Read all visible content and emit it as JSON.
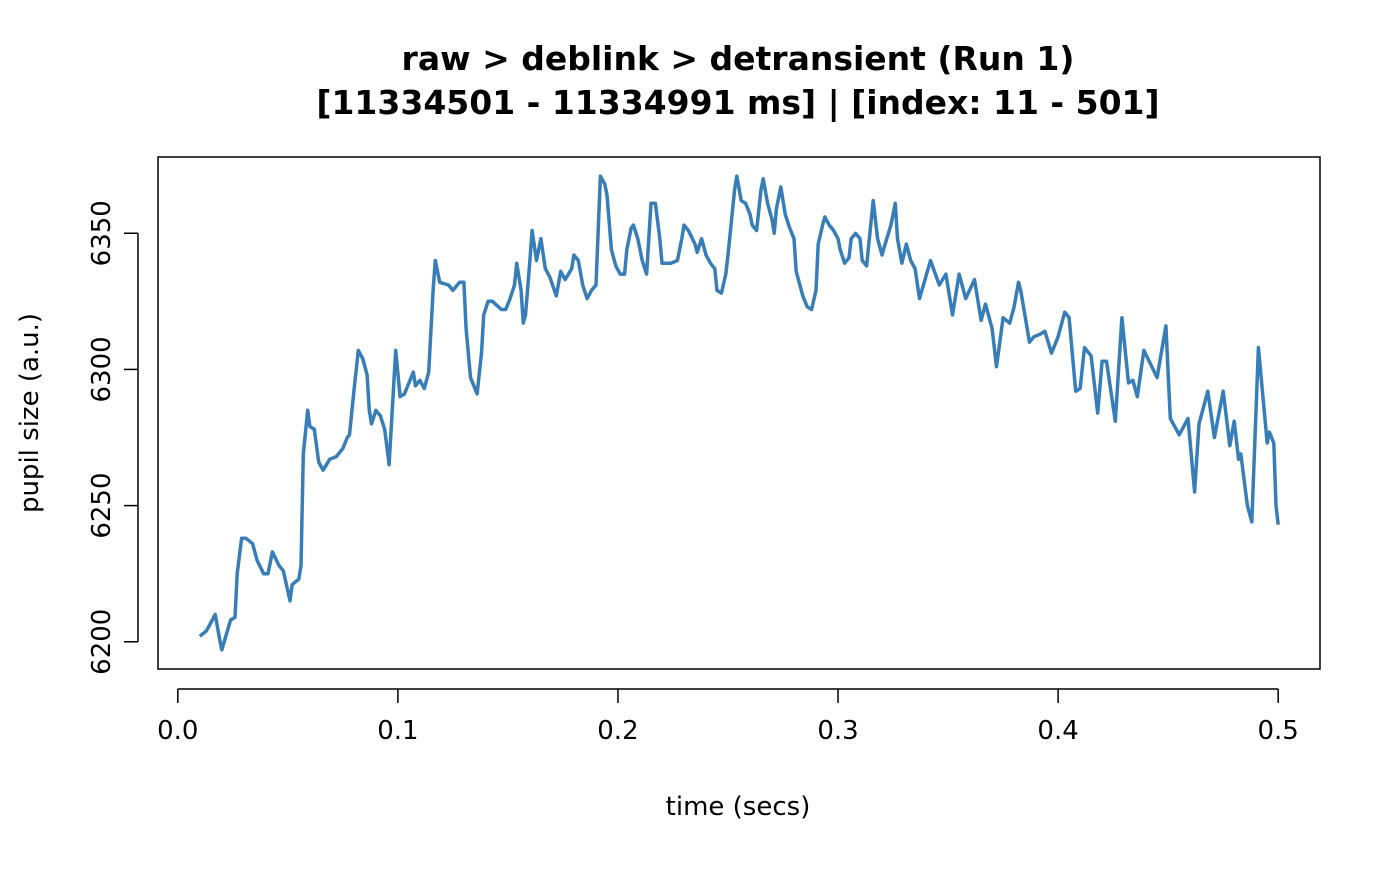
{
  "chart_data": {
    "type": "line",
    "title": "raw > deblink > detransient (Run 1)",
    "subtitle": "[11334501 - 11334991 ms] | [index: 11 - 501]",
    "xlabel": "time (secs)",
    "ylabel": "pupil size (a.u.)",
    "xlim": [
      -0.009,
      0.519
    ],
    "ylim": [
      6190,
      6378
    ],
    "xticks": [
      0.0,
      0.1,
      0.2,
      0.3,
      0.4,
      0.5
    ],
    "xtick_labels": [
      "0.0",
      "0.1",
      "0.2",
      "0.3",
      "0.4",
      "0.5"
    ],
    "yticks": [
      6200,
      6250,
      6300,
      6350
    ],
    "ytick_labels": [
      "6200",
      "6250",
      "6300",
      "6350"
    ],
    "grid": false,
    "line_color": "#377eb8",
    "x": [
      0.01,
      0.013,
      0.017,
      0.019,
      0.02,
      0.024,
      0.026,
      0.027,
      0.029,
      0.031,
      0.034,
      0.036,
      0.039,
      0.041,
      0.043,
      0.046,
      0.048,
      0.051,
      0.052,
      0.055,
      0.056,
      0.057,
      0.059,
      0.06,
      0.062,
      0.064,
      0.066,
      0.069,
      0.072,
      0.075,
      0.077,
      0.078,
      0.08,
      0.082,
      0.084,
      0.086,
      0.087,
      0.088,
      0.09,
      0.092,
      0.094,
      0.096,
      0.098,
      0.099,
      0.101,
      0.103,
      0.107,
      0.108,
      0.11,
      0.112,
      0.114,
      0.116,
      0.117,
      0.119,
      0.123,
      0.125,
      0.128,
      0.13,
      0.131,
      0.133,
      0.136,
      0.138,
      0.139,
      0.141,
      0.143,
      0.147,
      0.149,
      0.151,
      0.153,
      0.154,
      0.156,
      0.157,
      0.158,
      0.16,
      0.161,
      0.163,
      0.165,
      0.167,
      0.169,
      0.172,
      0.174,
      0.176,
      0.179,
      0.18,
      0.182,
      0.184,
      0.186,
      0.188,
      0.19,
      0.192,
      0.194,
      0.195,
      0.197,
      0.199,
      0.201,
      0.203,
      0.204,
      0.206,
      0.207,
      0.209,
      0.211,
      0.213,
      0.215,
      0.217,
      0.219,
      0.22,
      0.224,
      0.227,
      0.229,
      0.23,
      0.232,
      0.235,
      0.236,
      0.238,
      0.24,
      0.242,
      0.244,
      0.245,
      0.247,
      0.249,
      0.25,
      0.253,
      0.254,
      0.256,
      0.258,
      0.26,
      0.261,
      0.263,
      0.265,
      0.266,
      0.268,
      0.27,
      0.271,
      0.272,
      0.274,
      0.276,
      0.278,
      0.28,
      0.281,
      0.282,
      0.284,
      0.286,
      0.288,
      0.29,
      0.291,
      0.293,
      0.294,
      0.296,
      0.298,
      0.3,
      0.301,
      0.303,
      0.305,
      0.306,
      0.308,
      0.31,
      0.311,
      0.313,
      0.316,
      0.318,
      0.32,
      0.321,
      0.324,
      0.326,
      0.327,
      0.329,
      0.331,
      0.333,
      0.335,
      0.337,
      0.342,
      0.346,
      0.349,
      0.352,
      0.355,
      0.358,
      0.362,
      0.365,
      0.367,
      0.37,
      0.372,
      0.375,
      0.378,
      0.38,
      0.382,
      0.383,
      0.387,
      0.389,
      0.392,
      0.394,
      0.397,
      0.4,
      0.403,
      0.405,
      0.408,
      0.41,
      0.412,
      0.415,
      0.418,
      0.42,
      0.422,
      0.426,
      0.429,
      0.432,
      0.434,
      0.436,
      0.439,
      0.442,
      0.445,
      0.449,
      0.451,
      0.455,
      0.459,
      0.462,
      0.464,
      0.468,
      0.471,
      0.475,
      0.478,
      0.48,
      0.482,
      0.483,
      0.486,
      0.488,
      0.491,
      0.495,
      0.496,
      0.498,
      0.499,
      0.5
    ],
    "y": [
      6202,
      6204,
      6210,
      6201,
      6197,
      6208,
      6209,
      6225,
      6238,
      6238,
      6236,
      6230,
      6225,
      6225,
      6233,
      6228,
      6226,
      6215,
      6221,
      6223,
      6228,
      6269,
      6285,
      6279,
      6278,
      6266,
      6263,
      6267,
      6268,
      6271,
      6275,
      6276,
      6292,
      6307,
      6304,
      6298,
      6285,
      6280,
      6285,
      6283,
      6278,
      6265,
      6293,
      6307,
      6290,
      6291,
      6299,
      6294,
      6296,
      6293,
      6299,
      6329,
      6340,
      6332,
      6331,
      6329,
      6332,
      6332,
      6315,
      6297,
      6291,
      6306,
      6320,
      6325,
      6325,
      6322,
      6322,
      6326,
      6331,
      6339,
      6329,
      6317,
      6320,
      6340,
      6351,
      6340,
      6348,
      6337,
      6334,
      6327,
      6336,
      6333,
      6337,
      6342,
      6340,
      6331,
      6326,
      6329,
      6331,
      6371,
      6368,
      6364,
      6344,
      6338,
      6335,
      6335,
      6344,
      6352,
      6353,
      6348,
      6340,
      6335,
      6361,
      6361,
      6348,
      6339,
      6339,
      6340,
      6348,
      6353,
      6351,
      6346,
      6343,
      6348,
      6342,
      6339,
      6337,
      6329,
      6328,
      6335,
      6342,
      6366,
      6371,
      6362,
      6361,
      6357,
      6353,
      6351,
      6366,
      6370,
      6361,
      6355,
      6350,
      6359,
      6367,
      6357,
      6352,
      6348,
      6336,
      6333,
      6327,
      6323,
      6322,
      6329,
      6346,
      6353,
      6356,
      6353,
      6351,
      6348,
      6344,
      6339,
      6341,
      6348,
      6350,
      6348,
      6340,
      6338,
      6362,
      6348,
      6342,
      6345,
      6353,
      6361,
      6348,
      6339,
      6346,
      6340,
      6337,
      6326,
      6340,
      6331,
      6335,
      6320,
      6335,
      6326,
      6333,
      6318,
      6324,
      6315,
      6301,
      6319,
      6317,
      6323,
      6332,
      6329,
      6310,
      6312,
      6313,
      6314,
      6306,
      6312,
      6321,
      6319,
      6292,
      6293,
      6308,
      6305,
      6284,
      6303,
      6303,
      6281,
      6319,
      6295,
      6296,
      6290,
      6307,
      6302,
      6297,
      6316,
      6282,
      6276,
      6282,
      6255,
      6280,
      6292,
      6275,
      6292,
      6272,
      6281,
      6267,
      6269,
      6250,
      6244,
      6308,
      6273,
      6277,
      6273,
      6250,
      6243
    ]
  }
}
